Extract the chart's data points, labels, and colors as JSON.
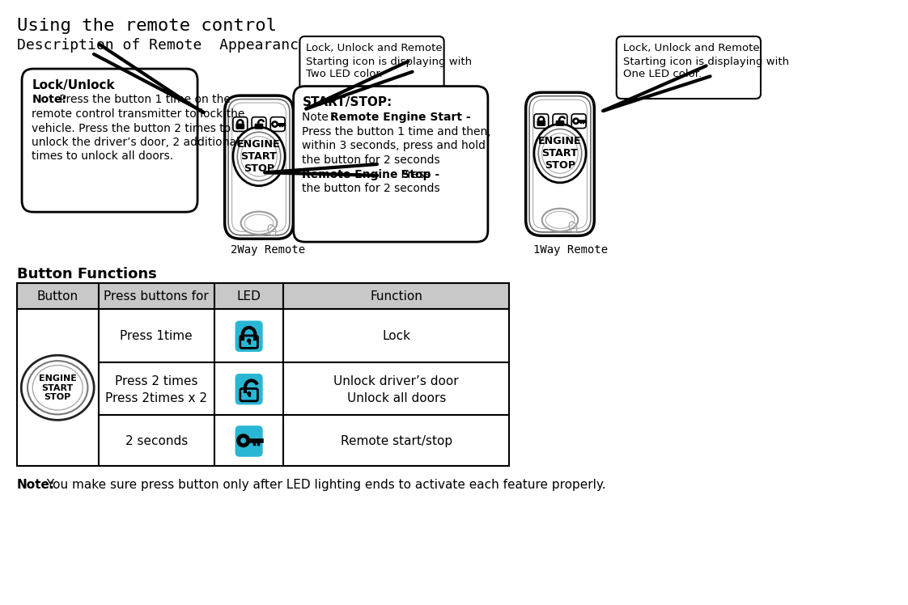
{
  "title": "Using the remote control",
  "subtitle": "Description of Remote  Appearance",
  "bg_color": "#ffffff",
  "cyan_color": "#29b6d4",
  "table_header_bg": "#c8c8c8",
  "labels_2way": "2Way Remote",
  "labels_1way": "1Way Remote",
  "callout1_text": "Lock, Unlock and Remote\n\nStarting icon is displaying with\nTwo LED color.",
  "callout2_text": "Lock, Unlock and Remote\n\nStarting icon is displaying with\nOne LED color.",
  "lu_title": "Lock/Unlock",
  "lu_note_bold": "Note:",
  "lu_note_rest": " Press the button 1 time on the",
  "lu_line2": "remote control transmitter to lock the",
  "lu_line3": "vehicle. Press the button 2 times to",
  "lu_line4": "unlock the driver’s door, 2 additional",
  "lu_line5": "times to unlock all doors.",
  "ss_title": "START/STOP:",
  "ss_line1_plain": "Note : ",
  "ss_line1_bold": "Remote Engine Start -",
  "ss_line2": "Press the button 1 time and then,",
  "ss_line3": "within 3 seconds, press and hold",
  "ss_line4": "the button for 2 seconds",
  "ss_line5_bold": "Remote Engine Stop -",
  "ss_line5_plain": " Press",
  "ss_line6": "the button for 2 seconds",
  "btn_func_title": "Button Functions",
  "table_headers": [
    "Button",
    "Press buttons for",
    "LED",
    "Function"
  ],
  "row1_press": "Press 1time",
  "row1_func": "Lock",
  "row2_press1": "Press 2 times",
  "row2_press2": "Press 2times x 2",
  "row2_func1": "Unlock driver’s door",
  "row2_func2": "Unlock all doors",
  "row3_press": "2 seconds",
  "row3_func": "Remote start/stop",
  "note_bold": "Note:",
  "note_rest": " You make sure press button only after LED lighting ends to activate each feature properly."
}
